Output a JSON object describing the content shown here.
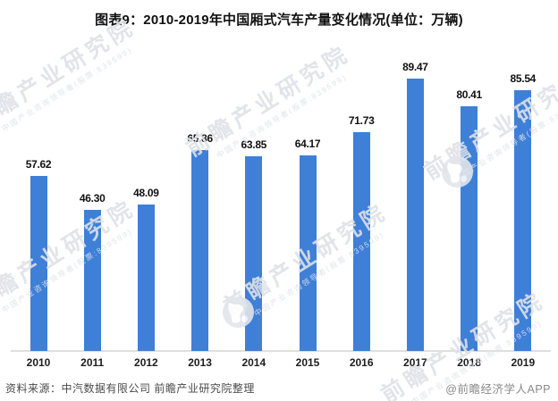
{
  "header": {
    "title": "图表9：2010-2019年中国厢式汽车产量变化情况(单位：万辆)"
  },
  "chart_data": {
    "type": "bar",
    "title": "图表9：2010-2019年中国厢式汽车产量变化情况(单位：万辆)",
    "unit": "万辆",
    "categories": [
      "2010",
      "2011",
      "2012",
      "2013",
      "2014",
      "2015",
      "2016",
      "2017",
      "2018",
      "2019"
    ],
    "values": [
      57.62,
      46.3,
      48.09,
      65.86,
      63.85,
      64.17,
      71.73,
      89.47,
      80.41,
      85.54
    ],
    "value_labels": [
      "57.62",
      "46.30",
      "48.09",
      "65.86",
      "63.85",
      "64.17",
      "71.73",
      "89.47",
      "80.41",
      "85.54"
    ],
    "bar_color": "#3e7fd8",
    "ylim": [
      0,
      100
    ],
    "grid": false,
    "legend_position": "none",
    "value_labels_shown": true,
    "xlabel": "",
    "ylabel": ""
  },
  "footer": {
    "source": "资料来源：中汽数据有限公司 前瞻产业研究院整理",
    "credit": "@前瞻经济学人APP"
  },
  "watermark": {
    "name": "前瞻产业研究院",
    "slogan": "中国产业咨询领导者(股票:839599)"
  }
}
